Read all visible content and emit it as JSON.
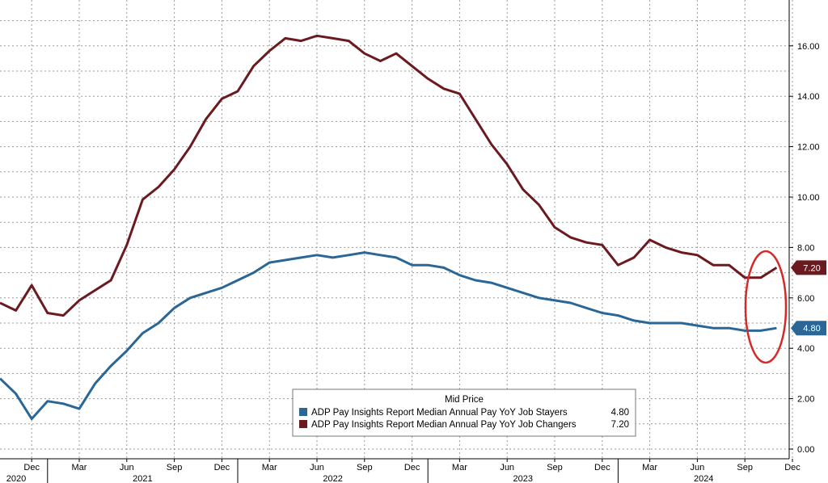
{
  "chart_data": {
    "type": "line",
    "title": "",
    "xlabel": "",
    "ylabel": "",
    "legend_title": "Mid Price",
    "legend_position": "bottom-right",
    "grid": true,
    "ylim": [
      0,
      18
    ],
    "yticks": [
      "0.00",
      "2.00",
      "4.00",
      "6.00",
      "8.00",
      "10.00",
      "12.00",
      "14.00",
      "16.00"
    ],
    "month_ticks": [
      "Dec",
      "Mar",
      "Jun",
      "Sep",
      "Dec",
      "Mar",
      "Jun",
      "Sep",
      "Dec",
      "Mar",
      "Jun",
      "Sep",
      "Dec",
      "Mar",
      "Jun",
      "Sep",
      "Dec"
    ],
    "year_ticks": [
      "2020",
      "2021",
      "2022",
      "2023",
      "2024"
    ],
    "x": [
      "2020-10",
      "2020-11",
      "2020-12",
      "2021-01",
      "2021-02",
      "2021-03",
      "2021-04",
      "2021-05",
      "2021-06",
      "2021-07",
      "2021-08",
      "2021-09",
      "2021-10",
      "2021-11",
      "2021-12",
      "2022-01",
      "2022-02",
      "2022-03",
      "2022-04",
      "2022-05",
      "2022-06",
      "2022-07",
      "2022-08",
      "2022-09",
      "2022-10",
      "2022-11",
      "2022-12",
      "2023-01",
      "2023-02",
      "2023-03",
      "2023-04",
      "2023-05",
      "2023-06",
      "2023-07",
      "2023-08",
      "2023-09",
      "2023-10",
      "2023-11",
      "2023-12",
      "2024-01",
      "2024-02",
      "2024-03",
      "2024-04",
      "2024-05",
      "2024-06",
      "2024-07",
      "2024-08",
      "2024-09",
      "2024-10",
      "2024-11"
    ],
    "series": [
      {
        "name": "ADP Pay Insights Report Median Annual Pay YoY Job Stayers",
        "legend_value": "4.80",
        "last_value_tag": "4.80",
        "color": "#2a6796",
        "values": [
          2.8,
          2.2,
          1.2,
          1.9,
          1.8,
          1.6,
          2.6,
          3.3,
          3.9,
          4.6,
          5.0,
          5.6,
          6.0,
          6.2,
          6.4,
          6.7,
          7.0,
          7.4,
          7.5,
          7.6,
          7.7,
          7.6,
          7.7,
          7.8,
          7.7,
          7.6,
          7.3,
          7.3,
          7.2,
          6.9,
          6.7,
          6.6,
          6.4,
          6.2,
          6.0,
          5.9,
          5.8,
          5.6,
          5.4,
          5.3,
          5.1,
          5.0,
          5.0,
          5.0,
          4.9,
          4.8,
          4.8,
          4.7,
          4.7,
          4.8
        ]
      },
      {
        "name": "ADP Pay Insights Report Median Annual Pay YoY Job Changers",
        "legend_value": "7.20",
        "last_value_tag": "7.20",
        "color": "#6b1a1f",
        "values": [
          5.8,
          5.5,
          6.5,
          5.4,
          5.3,
          5.9,
          6.3,
          6.7,
          8.1,
          9.9,
          10.4,
          11.1,
          12.0,
          13.1,
          13.9,
          14.2,
          15.2,
          15.8,
          16.3,
          16.2,
          16.4,
          16.3,
          16.2,
          15.7,
          15.4,
          15.7,
          15.2,
          14.7,
          14.3,
          14.1,
          13.1,
          12.1,
          11.3,
          10.3,
          9.7,
          8.8,
          8.4,
          8.2,
          8.1,
          7.3,
          7.6,
          8.3,
          8.0,
          7.8,
          7.7,
          7.3,
          7.3,
          6.8,
          6.8,
          7.2
        ]
      }
    ],
    "annotation": {
      "type": "ellipse",
      "color": "#d42a2a",
      "around": "last values"
    }
  }
}
